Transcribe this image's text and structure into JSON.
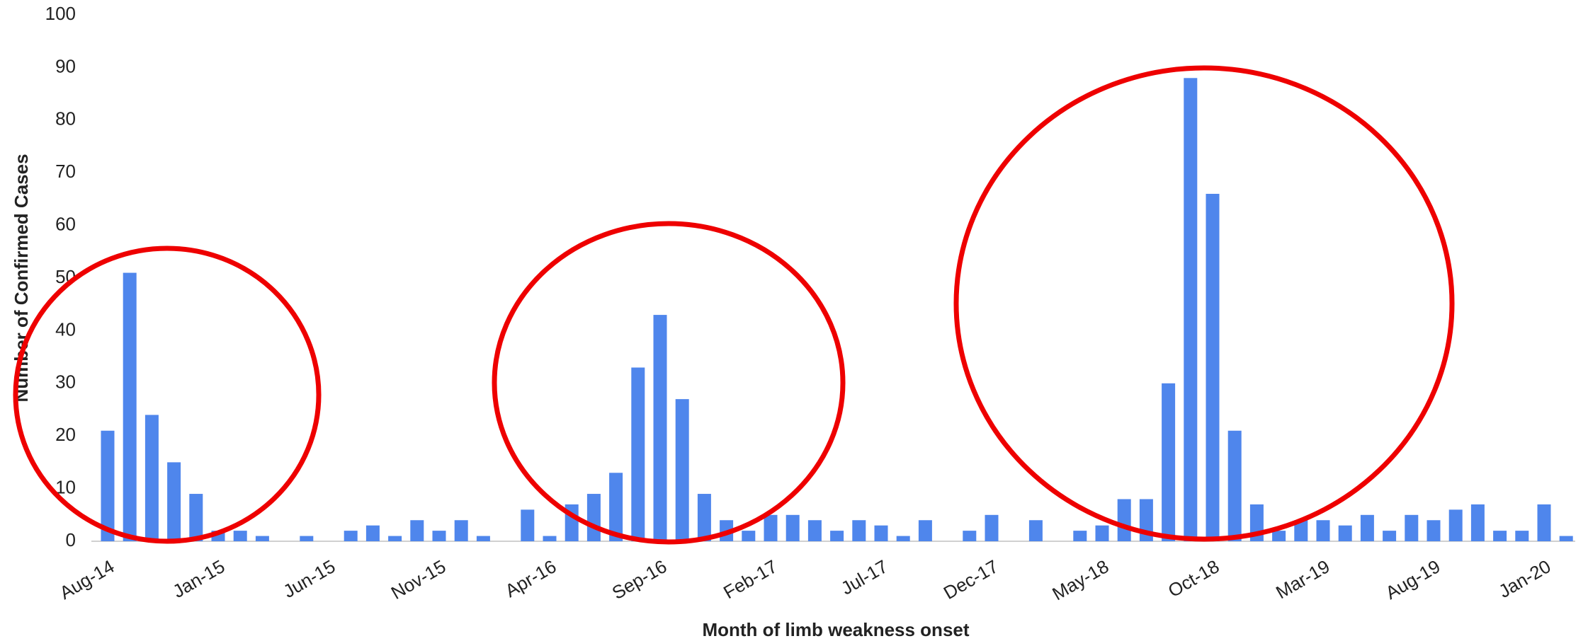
{
  "chart_data": {
    "type": "bar",
    "x_label": "Month of limb weakness onset",
    "y_label": "Number of Confirmed Cases",
    "categories": [
      "Aug-14",
      null,
      null,
      null,
      null,
      "Jan-15",
      null,
      null,
      null,
      null,
      "Jun-15",
      null,
      null,
      null,
      null,
      "Nov-15",
      null,
      null,
      null,
      null,
      "Apr-16",
      null,
      null,
      null,
      null,
      "Sep-16",
      null,
      null,
      null,
      null,
      "Feb-17",
      null,
      null,
      null,
      null,
      "Jul-17",
      null,
      null,
      null,
      null,
      "Dec-17",
      null,
      null,
      null,
      null,
      "May-18",
      null,
      null,
      null,
      null,
      "Oct-18",
      null,
      null,
      null,
      null,
      "Mar-19",
      null,
      null,
      null,
      null,
      "Aug-19",
      null,
      null,
      null,
      null,
      "Jan-20",
      null
    ],
    "values": [
      21,
      51,
      24,
      15,
      9,
      2,
      2,
      1,
      0,
      1,
      0,
      2,
      3,
      1,
      4,
      2,
      4,
      1,
      0,
      6,
      1,
      7,
      9,
      13,
      33,
      43,
      27,
      9,
      4,
      2,
      5,
      5,
      4,
      2,
      4,
      3,
      1,
      4,
      0,
      2,
      5,
      0,
      4,
      0,
      2,
      3,
      8,
      8,
      30,
      88,
      66,
      21,
      7,
      2,
      4,
      4,
      3,
      5,
      2,
      5,
      4,
      6,
      7,
      2,
      2,
      7,
      1
    ],
    "color": "#4f86ec",
    "ylim": [
      0,
      100
    ],
    "yticks": [
      0,
      10,
      20,
      30,
      40,
      50,
      60,
      70,
      80,
      90,
      100
    ],
    "grid": false
  }
}
